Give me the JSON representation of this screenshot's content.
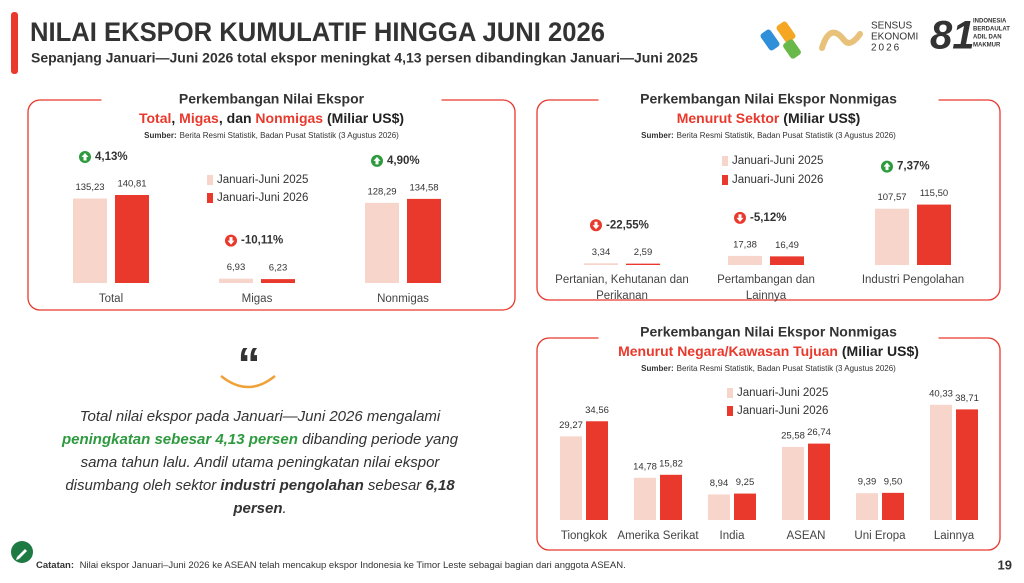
{
  "header": {
    "title": "NILAI EKSPOR KUMULATIF HINGGA JUNI 2026",
    "subtitle": "Sepanjang Januari—Juni 2026 total ekspor meningkat 4,13 persen dibandingkan Januari—Juni 2025"
  },
  "logos": {
    "sensus": [
      "SENSUS",
      "EKONOMI",
      "2026"
    ],
    "anniversary": "81",
    "motto": [
      "INDONESIA",
      "BERDAULAT",
      "ADIL DAN",
      "MAKMUR"
    ]
  },
  "chart_data": [
    {
      "type": "bar",
      "title": "Perkembangan Nilai Ekspor",
      "title_parts": [
        {
          "text": "Total",
          "highlight": true
        },
        {
          "text": ", ",
          "highlight": false
        },
        {
          "text": "Migas",
          "highlight": true
        },
        {
          "text": ", dan ",
          "highlight": false
        },
        {
          "text": "Nonmigas",
          "highlight": true
        },
        {
          "text": " (Miliar US$)",
          "highlight": false
        }
      ],
      "source_label": "Sumber:",
      "source": "Berita Resmi Statistik, Badan Pusat Statistik (3 Agustus 2026)",
      "categories": [
        "Total",
        "Migas",
        "Nonmigas"
      ],
      "series": [
        {
          "name": "Januari-Juni 2025",
          "color": "#f8d5cb",
          "values": [
            135.23,
            6.93,
            128.29
          ],
          "value_labels": [
            "135,23",
            "6,93",
            "128,29"
          ]
        },
        {
          "name": "Januari-Juni 2026",
          "color": "#e8392c",
          "values": [
            140.81,
            6.23,
            134.58
          ],
          "value_labels": [
            "140,81",
            "6,23",
            "134,58"
          ]
        }
      ],
      "annotations": [
        {
          "value": 4.13,
          "label": "4,13%"
        },
        {
          "value": -10.11,
          "label": "-10,11%"
        },
        {
          "value": 4.9,
          "label": "4,90%"
        }
      ],
      "ylim": [
        0,
        160
      ]
    },
    {
      "type": "bar",
      "title": "Perkembangan Nilai Ekspor Nonmigas",
      "title_parts": [
        {
          "text": "Menurut Sektor",
          "highlight": true
        },
        {
          "text": " (Miliar US$)",
          "highlight": false
        }
      ],
      "source_label": "Sumber:",
      "source": "Berita Resmi Statistik, Badan Pusat Statistik (3 Agustus 2026)",
      "categories": [
        "Pertanian, Kehutanan dan Perikanan",
        "Pertambangan dan Lainnya",
        "Industri Pengolahan"
      ],
      "series": [
        {
          "name": "Januari-Juni 2025",
          "color": "#f8d5cb",
          "values": [
            3.34,
            17.38,
            107.57
          ],
          "value_labels": [
            "3,34",
            "17,38",
            "107,57"
          ]
        },
        {
          "name": "Januari-Juni 2026",
          "color": "#e8392c",
          "values": [
            2.59,
            16.49,
            115.5
          ],
          "value_labels": [
            "2,59",
            "16,49",
            "115,50"
          ]
        }
      ],
      "annotations": [
        {
          "value": -22.55,
          "label": "-22,55%"
        },
        {
          "value": -5.12,
          "label": "-5,12%"
        },
        {
          "value": 7.37,
          "label": "7,37%"
        }
      ],
      "ylim": [
        0,
        130
      ]
    },
    {
      "type": "bar",
      "title": "Perkembangan Nilai Ekspor Nonmigas",
      "title_parts": [
        {
          "text": "Menurut Negara/Kawasan Tujuan",
          "highlight": true
        },
        {
          "text": " (Miliar US$)",
          "highlight": false
        }
      ],
      "source_label": "Sumber:",
      "source": "Berita Resmi Statistik, Badan Pusat Statistik (3 Agustus 2026)",
      "categories": [
        "Tiongkok",
        "Amerika Serikat",
        "India",
        "ASEAN",
        "Uni Eropa",
        "Lainnya"
      ],
      "series": [
        {
          "name": "Januari-Juni 2025",
          "color": "#f8d5cb",
          "values": [
            29.27,
            14.78,
            8.94,
            25.58,
            9.39,
            40.33
          ],
          "value_labels": [
            "29,27",
            "14,78",
            "8,94",
            "25,58",
            "9,39",
            "40,33"
          ]
        },
        {
          "name": "Januari-Juni 2026",
          "color": "#e8392c",
          "values": [
            34.56,
            15.82,
            9.25,
            26.74,
            9.5,
            38.71
          ],
          "value_labels": [
            "34,56",
            "15,82",
            "9,25",
            "26,74",
            "9,50",
            "38,71"
          ]
        }
      ],
      "ylim": [
        0,
        42
      ]
    }
  ],
  "quote": {
    "mark": "“",
    "parts": [
      {
        "text": "Total nilai ekspor pada Januari—Juni 2026 mengalami ",
        "style": "normal"
      },
      {
        "text": "peningkatan sebesar 4,13 persen",
        "style": "green"
      },
      {
        "text": " dibanding periode yang sama tahun lalu. Andil utama peningkatan nilai ekspor disumbang oleh sektor ",
        "style": "normal"
      },
      {
        "text": "industri pengolahan",
        "style": "bold"
      },
      {
        "text": " sebesar ",
        "style": "normal"
      },
      {
        "text": "6,18 persen",
        "style": "bold"
      },
      {
        "text": ".",
        "style": "normal"
      }
    ]
  },
  "footnote": {
    "label": "Catatan:",
    "text": "Nilai ekspor Januari–Juni 2026 ke ASEAN telah mencakup ekspor Indonesia ke Timor Leste sebagai bagian dari anggota ASEAN."
  },
  "page_number": "19"
}
